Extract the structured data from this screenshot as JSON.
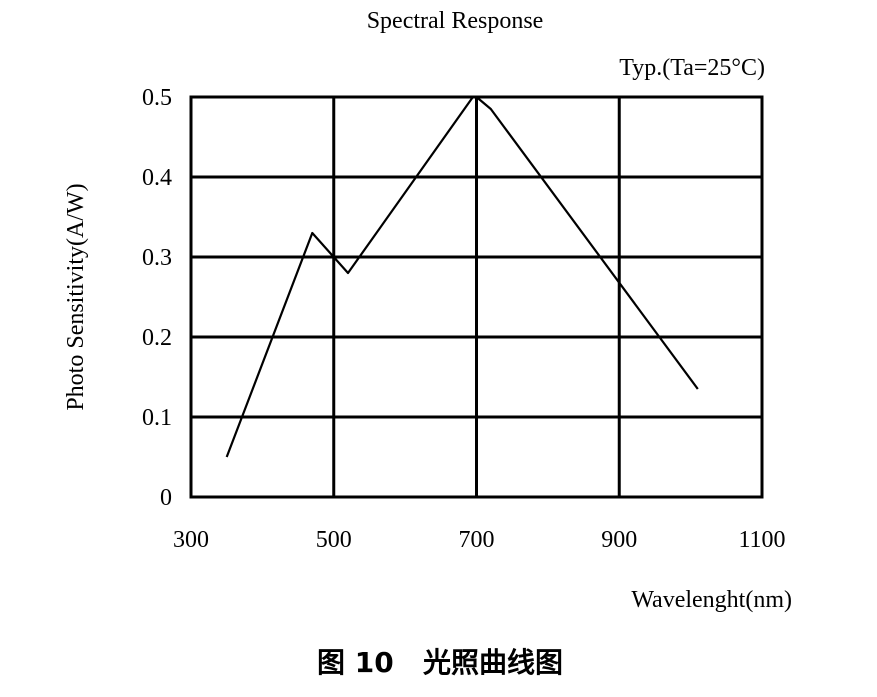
{
  "chart_data": {
    "type": "line",
    "title": "Spectral Response",
    "subtitle": "Typ.(Ta=25°C)",
    "xlabel": "Wavelenght(nm)",
    "ylabel": "Photo Sensitivity(A/W)",
    "xlim": [
      300,
      1100
    ],
    "ylim": [
      0,
      0.5
    ],
    "x_ticks": [
      "300",
      "500",
      "700",
      "900",
      "1100"
    ],
    "y_ticks": [
      "0",
      "0.1",
      "0.2",
      "0.3",
      "0.4",
      "0.5"
    ],
    "grid": true,
    "series": [
      {
        "x": [
          350,
          470,
          520,
          695,
          700,
          720,
          1010
        ],
        "y": [
          0.05,
          0.33,
          0.28,
          0.5,
          0.5,
          0.485,
          0.135
        ]
      }
    ]
  },
  "caption": "图 10   光照曲线图"
}
